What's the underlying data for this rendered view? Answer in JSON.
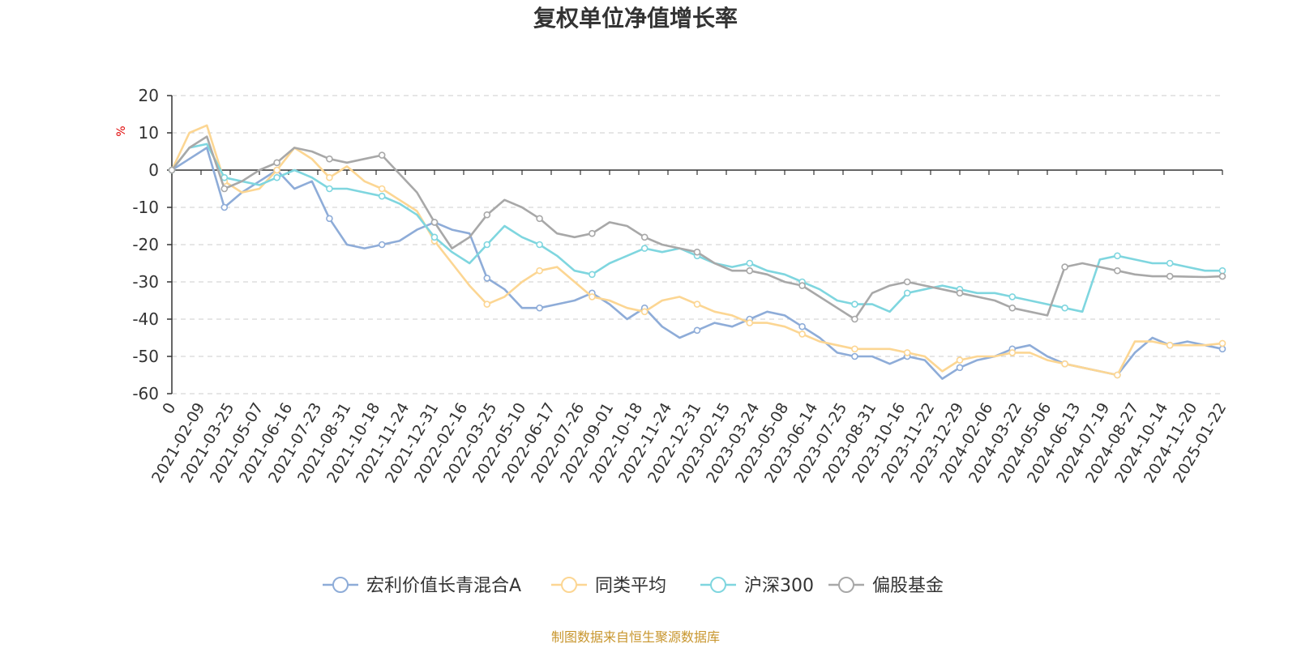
{
  "chart_data": {
    "type": "line",
    "title": "复权单位净值增长率",
    "ylabel": "%",
    "ylim": [
      -60,
      20
    ],
    "yticks": [
      "20",
      "10",
      "0",
      "-10",
      "-20",
      "-30",
      "-40",
      "-50",
      "-60"
    ],
    "x_tick_labels": [
      "0",
      "2021-02-09",
      "2021-03-25",
      "2021-05-07",
      "2021-06-16",
      "2021-07-23",
      "2021-08-31",
      "2021-10-18",
      "2021-11-24",
      "2021-12-31",
      "2022-02-16",
      "2022-03-25",
      "2022-05-10",
      "2022-06-17",
      "2022-07-26",
      "2022-09-01",
      "2022-10-18",
      "2022-11-24",
      "2022-12-31",
      "2023-02-15",
      "2023-03-24",
      "2023-05-08",
      "2023-06-14",
      "2023-07-25",
      "2023-08-31",
      "2023-10-16",
      "2023-11-22",
      "2023-12-29",
      "2024-02-06",
      "2024-03-22",
      "2024-05-06",
      "2024-06-13",
      "2024-07-19",
      "2024-08-27",
      "2024-10-14",
      "2024-11-20",
      "2025-01-22"
    ],
    "grid": true,
    "legend_position": "bottom",
    "series": [
      {
        "name": "宏利价值长青混合A",
        "color": "#8eacd8",
        "values": [
          0,
          3,
          6,
          -10,
          -6,
          -3,
          0,
          -5,
          -3,
          -13,
          -20,
          -21,
          -20,
          -19,
          -16,
          -14,
          -16,
          -17,
          -29,
          -32,
          -37,
          -37,
          -36,
          -35,
          -33,
          -36,
          -40,
          -37,
          -42,
          -45,
          -43,
          -41,
          -42,
          -40,
          -38,
          -39,
          -42,
          -45,
          -49,
          -50,
          -50,
          -52,
          -50,
          -51,
          -56,
          -53,
          -51,
          -50,
          -48,
          -47,
          -50,
          -52,
          -53,
          -54,
          -55,
          -49,
          -45,
          -47,
          -46,
          -47,
          -48
        ]
      },
      {
        "name": "同类平均",
        "color": "#fcd693",
        "values": [
          0,
          10,
          12,
          -3,
          -6,
          -5,
          0,
          6,
          3,
          -2,
          1,
          -3,
          -5,
          -8,
          -11,
          -19,
          -25,
          -31,
          -36,
          -34,
          -30,
          -27,
          -26,
          -30,
          -34,
          -35,
          -37,
          -38,
          -35,
          -34,
          -36,
          -38,
          -39,
          -41,
          -41,
          -42,
          -44,
          -46,
          -47,
          -48,
          -48,
          -48,
          -49,
          -50,
          -54,
          -51,
          -50,
          -50,
          -49,
          -49,
          -51,
          -52,
          -53,
          -54,
          -55,
          -46,
          -46,
          -47,
          -47,
          -47,
          -46.5
        ]
      },
      {
        "name": "沪深300",
        "color": "#7fd6df",
        "values": [
          0,
          6,
          7,
          -2,
          -3,
          -4,
          -2,
          0,
          -2,
          -5,
          -5,
          -6,
          -7,
          -9,
          -12,
          -18,
          -22,
          -25,
          -20,
          -15,
          -18,
          -20,
          -23,
          -27,
          -28,
          -25,
          -23,
          -21,
          -22,
          -21,
          -23,
          -25,
          -26,
          -25,
          -27,
          -28,
          -30,
          -32,
          -35,
          -36,
          -36,
          -38,
          -33,
          -32,
          -31,
          -32,
          -33,
          -33,
          -34,
          -35,
          -36,
          -37,
          -38,
          -24,
          -23,
          -24,
          -25,
          -25,
          -26,
          -27,
          -27
        ]
      },
      {
        "name": "偏股基金",
        "color": "#a8a8a8",
        "values": [
          0,
          6,
          9,
          -5,
          -3,
          0,
          2,
          6,
          5,
          3,
          2,
          3,
          4,
          -1,
          -6,
          -14,
          -21,
          -18,
          -12,
          -8,
          -10,
          -13,
          -17,
          -18,
          -17,
          -14,
          -15,
          -18,
          -20,
          -21,
          -22,
          -25,
          -27,
          -27,
          -28,
          -30,
          -31,
          -34,
          -37,
          -40,
          -33,
          -31,
          -30,
          -31,
          -32,
          -33,
          -34,
          -35,
          -37,
          -38,
          -39,
          -26,
          -25,
          -26,
          -27,
          -28,
          -28.5,
          -28.5,
          -28.6,
          -28.7,
          -28.5
        ]
      }
    ]
  },
  "source_text": "制图数据来自恒生聚源数据库",
  "colors": {
    "title": "#333333",
    "axis": "#333333",
    "grid": "#cccccc",
    "ylabel": "#e00000",
    "source": "#c8962e"
  }
}
